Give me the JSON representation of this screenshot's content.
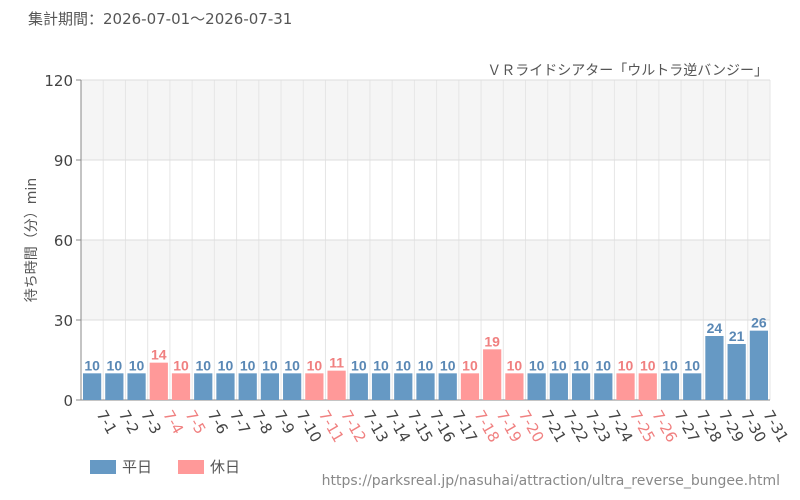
{
  "header": {
    "period_label": "集計期間：2026-07-01～2026-07-31",
    "attraction": "ＶＲライドシアター「ウルトラ逆バンジー」"
  },
  "footer": {
    "source_url": "https://parksreal.jp/nasuhai/attraction/ultra_reverse_bungee.html"
  },
  "colors": {
    "weekday": "#6699c4",
    "holiday": "#ff9999"
  },
  "chart_data": {
    "type": "bar",
    "title": "",
    "xlabel": "",
    "ylabel": "待ち時間（分）min",
    "ylim": [
      0,
      120
    ],
    "yticks": [
      0,
      30,
      60,
      90,
      120
    ],
    "grid": true,
    "legend_position": "bottom-left",
    "legend": [
      {
        "name": "平日",
        "color": "#6699c4"
      },
      {
        "name": "休日",
        "color": "#ff9999"
      }
    ],
    "categories": [
      "7-1",
      "7-2",
      "7-3",
      "7-4",
      "7-5",
      "7-6",
      "7-7",
      "7-8",
      "7-9",
      "7-10",
      "7-11",
      "7-12",
      "7-13",
      "7-14",
      "7-15",
      "7-16",
      "7-17",
      "7-18",
      "7-19",
      "7-20",
      "7-21",
      "7-22",
      "7-23",
      "7-24",
      "7-25",
      "7-26",
      "7-27",
      "7-28",
      "7-29",
      "7-30",
      "7-31"
    ],
    "values": [
      10,
      10,
      10,
      14,
      10,
      10,
      10,
      10,
      10,
      10,
      10,
      11,
      10,
      10,
      10,
      10,
      10,
      10,
      19,
      10,
      10,
      10,
      10,
      10,
      10,
      10,
      10,
      10,
      24,
      21,
      26
    ],
    "day_type": [
      "平日",
      "平日",
      "平日",
      "休日",
      "休日",
      "平日",
      "平日",
      "平日",
      "平日",
      "平日",
      "休日",
      "休日",
      "平日",
      "平日",
      "平日",
      "平日",
      "平日",
      "休日",
      "休日",
      "休日",
      "平日",
      "平日",
      "平日",
      "平日",
      "休日",
      "休日",
      "平日",
      "平日",
      "平日",
      "平日",
      "平日"
    ]
  }
}
